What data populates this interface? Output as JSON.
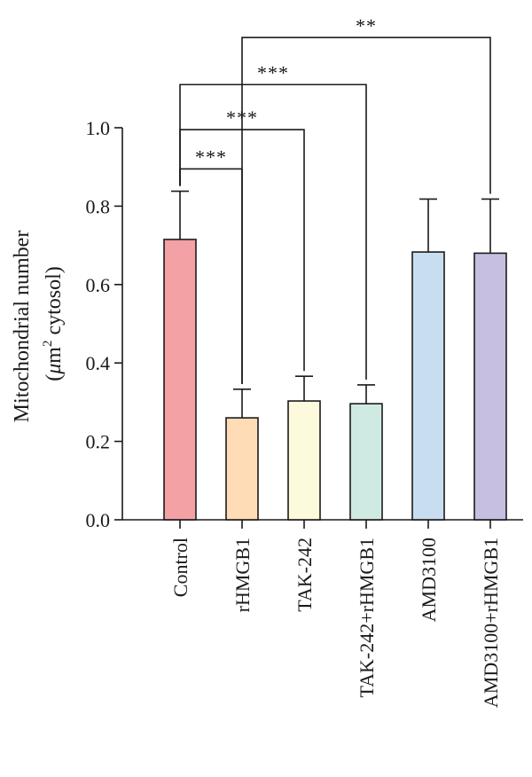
{
  "chart_data": {
    "type": "bar",
    "title": "",
    "xlabel": "",
    "ylabel_line1": "Mitochondrial number",
    "ylabel_line2_prefix": "(",
    "ylabel_line2_mu": "μ",
    "ylabel_line2_unit": "m",
    "ylabel_line2_sup": "2",
    "ylabel_line2_suffix": " cytosol)",
    "ylim": [
      0,
      1.0
    ],
    "yticks": [
      0.0,
      0.2,
      0.4,
      0.6,
      0.8,
      1.0
    ],
    "ytick_labels": [
      "0.0",
      "0.2",
      "0.4",
      "0.6",
      "0.8",
      "1.0"
    ],
    "categories": [
      "Control",
      "rHMGB1",
      "TAK-242",
      "TAK-242+rHMGB1",
      "AMD3100",
      "AMD3100+rHMGB1"
    ],
    "values": [
      0.715,
      0.26,
      0.303,
      0.296,
      0.683,
      0.68
    ],
    "errors": [
      0.123,
      0.073,
      0.063,
      0.048,
      0.135,
      0.138
    ],
    "colors": [
      "#f4a1a6",
      "#fddcb6",
      "#fdf9dc",
      "#cfeae2",
      "#c9ddf1",
      "#c7bfe1"
    ],
    "significance": [
      {
        "from": 0,
        "to": 1,
        "label": "***",
        "level": 0.895
      },
      {
        "from": 0,
        "to": 2,
        "label": "***",
        "level": 0.995
      },
      {
        "from": 0,
        "to": 3,
        "label": "***",
        "level": 1.11
      },
      {
        "from": 1,
        "to": 5,
        "label": "**",
        "level": 1.23
      }
    ],
    "grid": false,
    "legend": "none"
  }
}
